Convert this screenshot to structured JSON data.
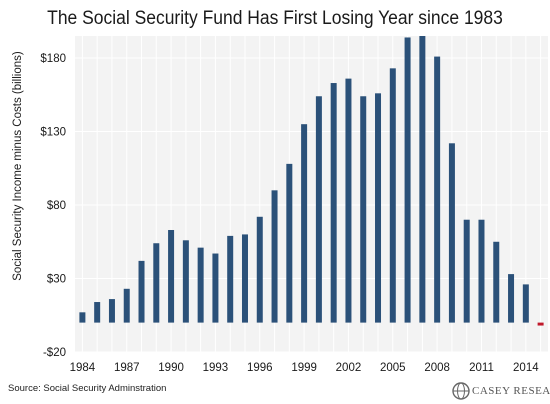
{
  "chart_data": {
    "type": "bar",
    "title": "The Social Security Fund Has First Losing Year since 1983",
    "xlabel": "",
    "ylabel": "Social Security Income minus Costs (billions)",
    "ylim": [
      -20,
      195
    ],
    "yticks": [
      -20,
      30,
      80,
      130,
      180
    ],
    "ytick_labels": [
      "-$20",
      "$30",
      "$80",
      "$130",
      "$180"
    ],
    "xtick_labels": [
      "1984",
      "1987",
      "1990",
      "1993",
      "1996",
      "1999",
      "2002",
      "2005",
      "2008",
      "2011",
      "2014"
    ],
    "categories": [
      1984,
      1985,
      1986,
      1987,
      1988,
      1989,
      1990,
      1991,
      1992,
      1993,
      1994,
      1995,
      1996,
      1997,
      1998,
      1999,
      2000,
      2001,
      2002,
      2003,
      2004,
      2005,
      2006,
      2007,
      2008,
      2009,
      2010,
      2011,
      2012,
      2013,
      2014,
      2015
    ],
    "values": [
      7,
      14,
      16,
      23,
      42,
      54,
      63,
      56,
      51,
      47,
      59,
      60,
      72,
      90,
      108,
      135,
      154,
      163,
      166,
      154,
      156,
      173,
      194,
      195,
      181,
      122,
      70,
      70,
      55,
      33,
      26,
      -2
    ],
    "colors": {
      "positive": "#2b5179",
      "negative": "#c0192b",
      "background": "#f3f3f3",
      "grid": "#ffffff"
    },
    "grid": true
  },
  "source": "Source: Social Security Adminstration",
  "logo_text": "CASEY RESEARCH"
}
